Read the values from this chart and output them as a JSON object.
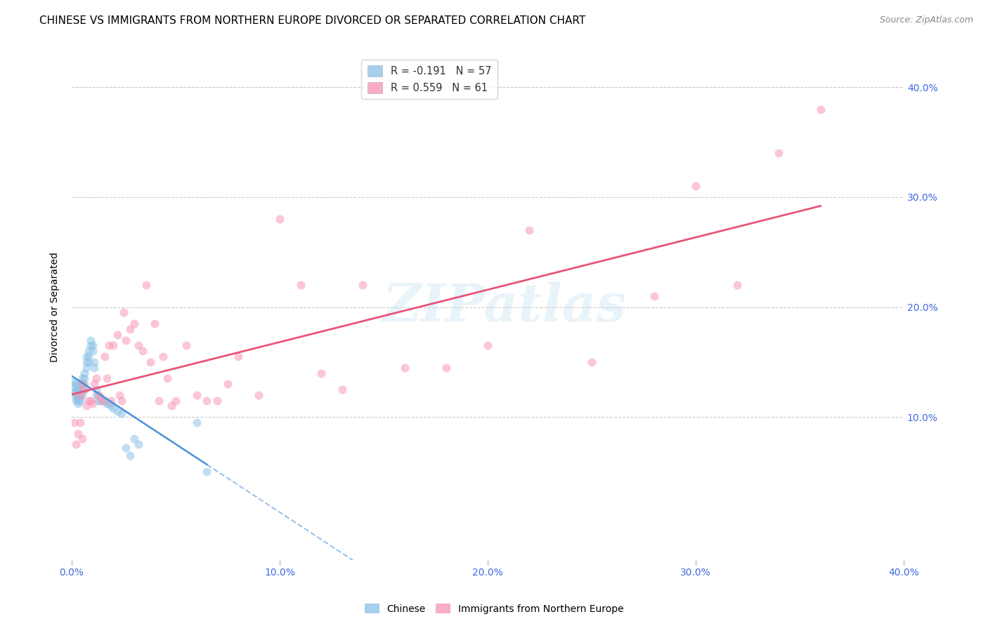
{
  "title": "CHINESE VS IMMIGRANTS FROM NORTHERN EUROPE DIVORCED OR SEPARATED CORRELATION CHART",
  "source": "Source: ZipAtlas.com",
  "ylabel": "Divorced or Separated",
  "watermark": "ZIPatlas",
  "xlim": [
    0.0,
    0.4
  ],
  "ylim": [
    -0.03,
    0.43
  ],
  "yticks": [
    0.1,
    0.2,
    0.3,
    0.4
  ],
  "ytick_labels": [
    "10.0%",
    "20.0%",
    "30.0%",
    "40.0%"
  ],
  "xticks": [
    0.0,
    0.1,
    0.2,
    0.3,
    0.4
  ],
  "xtick_labels": [
    "0.0%",
    "10.0%",
    "20.0%",
    "30.0%",
    "40.0%"
  ],
  "legend_R1": "R = -0.191",
  "legend_N1": "N = 57",
  "legend_R2": "R = 0.559",
  "legend_N2": "N = 61",
  "chinese_color": "#90c4e8",
  "chinese_line_color": "#4a90d9",
  "ne_color": "#f898b8",
  "ne_line_color": "#e8547a",
  "tick_label_color": "#4169E1",
  "background_color": "#ffffff",
  "grid_color": "#cccccc",
  "title_fontsize": 11,
  "chinese_x": [
    0.001,
    0.001,
    0.001,
    0.002,
    0.002,
    0.002,
    0.002,
    0.002,
    0.003,
    0.003,
    0.003,
    0.003,
    0.003,
    0.004,
    0.004,
    0.004,
    0.004,
    0.004,
    0.005,
    0.005,
    0.005,
    0.005,
    0.006,
    0.006,
    0.006,
    0.006,
    0.007,
    0.007,
    0.007,
    0.008,
    0.008,
    0.008,
    0.009,
    0.009,
    0.01,
    0.01,
    0.011,
    0.011,
    0.012,
    0.012,
    0.013,
    0.013,
    0.014,
    0.015,
    0.016,
    0.017,
    0.018,
    0.019,
    0.02,
    0.022,
    0.024,
    0.026,
    0.028,
    0.03,
    0.032,
    0.06,
    0.065
  ],
  "chinese_y": [
    0.132,
    0.128,
    0.122,
    0.13,
    0.125,
    0.122,
    0.118,
    0.115,
    0.128,
    0.123,
    0.118,
    0.115,
    0.112,
    0.13,
    0.125,
    0.122,
    0.118,
    0.115,
    0.135,
    0.13,
    0.125,
    0.12,
    0.14,
    0.135,
    0.13,
    0.125,
    0.155,
    0.15,
    0.145,
    0.16,
    0.155,
    0.15,
    0.17,
    0.165,
    0.165,
    0.16,
    0.15,
    0.145,
    0.125,
    0.12,
    0.12,
    0.115,
    0.115,
    0.115,
    0.115,
    0.112,
    0.112,
    0.11,
    0.108,
    0.105,
    0.103,
    0.072,
    0.065,
    0.08,
    0.075,
    0.095,
    0.05
  ],
  "ne_x": [
    0.001,
    0.002,
    0.003,
    0.004,
    0.004,
    0.005,
    0.005,
    0.006,
    0.007,
    0.008,
    0.009,
    0.01,
    0.011,
    0.012,
    0.013,
    0.014,
    0.015,
    0.016,
    0.017,
    0.018,
    0.019,
    0.02,
    0.022,
    0.023,
    0.024,
    0.025,
    0.026,
    0.028,
    0.03,
    0.032,
    0.034,
    0.036,
    0.038,
    0.04,
    0.042,
    0.044,
    0.046,
    0.048,
    0.05,
    0.055,
    0.06,
    0.065,
    0.07,
    0.075,
    0.08,
    0.09,
    0.1,
    0.11,
    0.12,
    0.13,
    0.14,
    0.16,
    0.18,
    0.2,
    0.22,
    0.25,
    0.28,
    0.3,
    0.32,
    0.34,
    0.36
  ],
  "ne_y": [
    0.095,
    0.075,
    0.085,
    0.12,
    0.095,
    0.13,
    0.08,
    0.125,
    0.11,
    0.115,
    0.115,
    0.112,
    0.13,
    0.135,
    0.12,
    0.118,
    0.115,
    0.155,
    0.135,
    0.165,
    0.115,
    0.165,
    0.175,
    0.12,
    0.115,
    0.195,
    0.17,
    0.18,
    0.185,
    0.165,
    0.16,
    0.22,
    0.15,
    0.185,
    0.115,
    0.155,
    0.135,
    0.11,
    0.115,
    0.165,
    0.12,
    0.115,
    0.115,
    0.13,
    0.155,
    0.12,
    0.28,
    0.22,
    0.14,
    0.125,
    0.22,
    0.145,
    0.145,
    0.165,
    0.27,
    0.15,
    0.21,
    0.31,
    0.22,
    0.34,
    0.38
  ]
}
